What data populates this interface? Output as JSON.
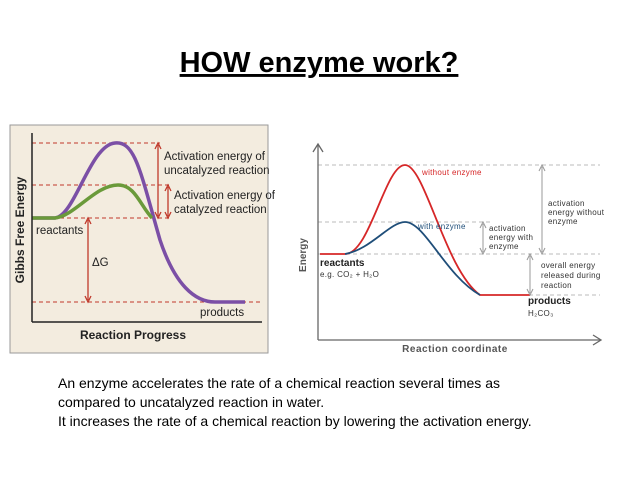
{
  "title": "HOW enzyme  work?",
  "left_diagram": {
    "y_axis_label": "Gibbs Free Energy",
    "x_axis_label": "Reaction Progress",
    "uncatalyzed_label": [
      "Activation energy of",
      "uncatalyzed reaction"
    ],
    "catalyzed_label": [
      "Activation energy of",
      "catalyzed reaction"
    ],
    "reactants": "reactants",
    "delta_g": "ΔG",
    "products": "products"
  },
  "right_diagram": {
    "y_axis_label": "Energy",
    "x_axis_label": "Reaction coordinate",
    "without_enzyme": "without enzyme",
    "with_enzyme": "with enzyme",
    "activation_with": [
      "activation",
      "energy with",
      "enzyme"
    ],
    "activation_without": [
      "activation",
      "energy without",
      "enzyme"
    ],
    "overall_energy": [
      "overall energy",
      "released during",
      "reaction"
    ],
    "reactants": "reactants",
    "reactants_example": "e.g. CO₂ + H₂O",
    "products": "products",
    "products_example": "H₂CO₃"
  },
  "body": [
    "An enzyme accelerates the rate of a chemical reaction  several times as",
    "compared to uncatalyzed reaction in water.",
    "It increases the rate of  a chemical reaction by lowering the activation energy."
  ]
}
